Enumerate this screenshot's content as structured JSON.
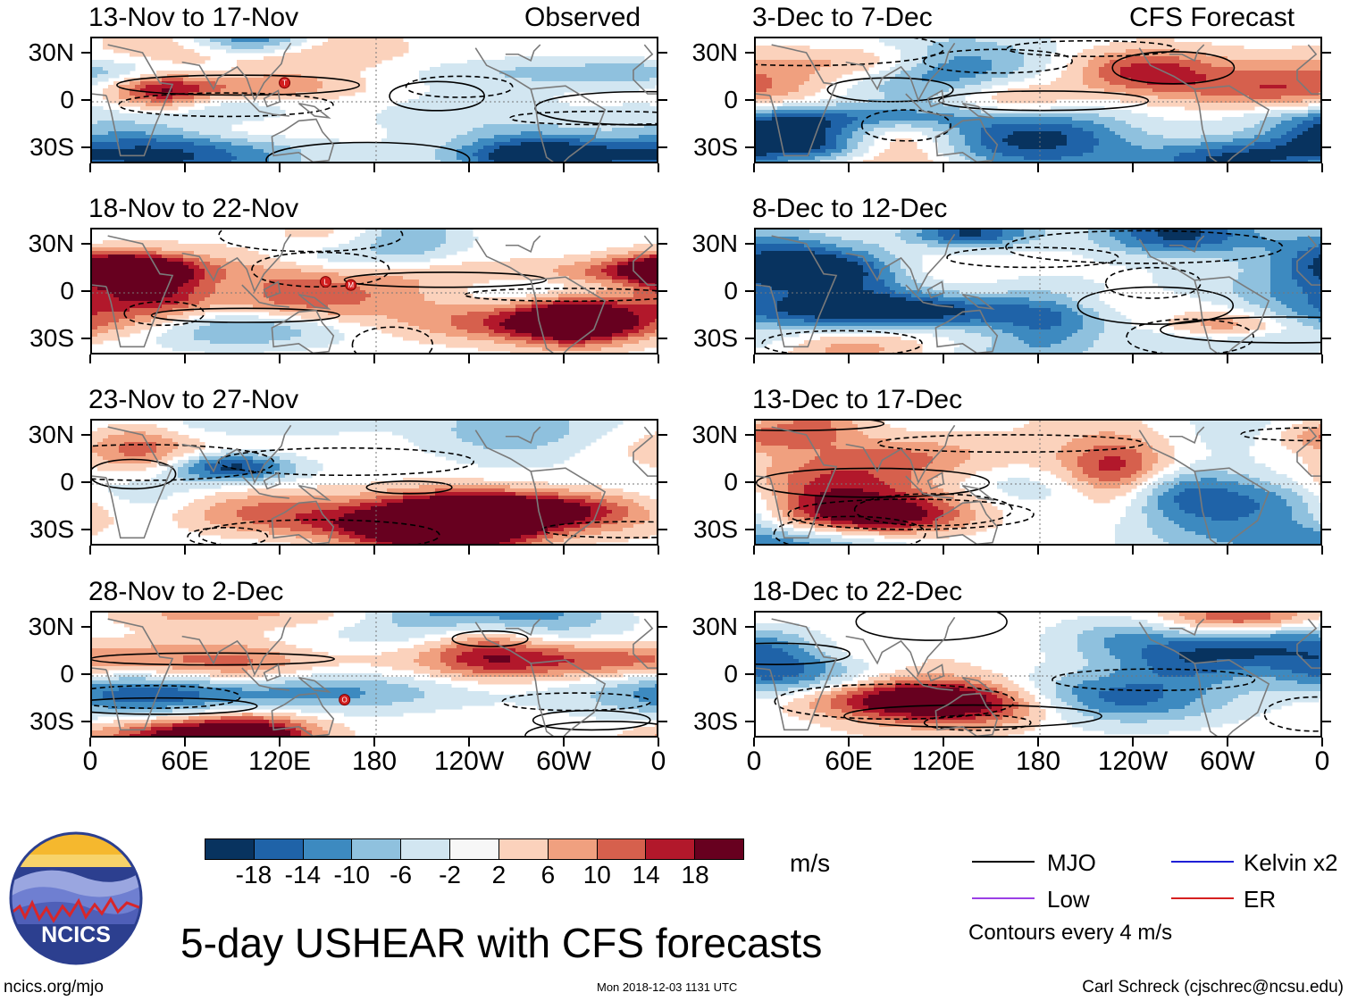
{
  "chart_data": {
    "type": "heatmap",
    "title": "5-day USHEAR with CFS forecasts",
    "units": "m/s",
    "column_labels": [
      "Observed",
      "CFS Forecast"
    ],
    "lat_ticks": [
      "30N",
      "0",
      "30S"
    ],
    "lat_values": [
      30,
      0,
      -30
    ],
    "lon_ticks": [
      "0",
      "60E",
      "120E",
      "180",
      "120W",
      "60W",
      "0"
    ],
    "lon_values": [
      0,
      60,
      120,
      180,
      240,
      300,
      360
    ],
    "ylim": [
      -40,
      40
    ],
    "xlim": [
      0,
      360
    ],
    "colorbar": {
      "labels": [
        "-18",
        "-14",
        "-10",
        "-6",
        "-2",
        "2",
        "6",
        "10",
        "14",
        "18"
      ],
      "levels": [
        -18,
        -14,
        -10,
        -6,
        -2,
        2,
        6,
        10,
        14,
        18
      ],
      "colors": [
        "#08335f",
        "#1f63a8",
        "#3d8ac0",
        "#8fc1de",
        "#d2e6f1",
        "#f7f7f7",
        "#fbd2bc",
        "#f0a07f",
        "#d6604d",
        "#b2182b",
        "#67001f"
      ]
    },
    "legend": [
      {
        "name": "MJO",
        "color": "#000000"
      },
      {
        "name": "Kelvin x2",
        "color": "#1f1fd6"
      },
      {
        "name": "Low",
        "color": "#9b3fe6"
      },
      {
        "name": "ER",
        "color": "#d62020"
      }
    ],
    "contour_note": "Contours every 4 m/s",
    "panels": [
      {
        "period": "13-Nov to 17-Nov",
        "source": "Observed",
        "storms": [
          {
            "id": "T",
            "lon": 122,
            "lat": 12
          }
        ],
        "seed": 11
      },
      {
        "period": "18-Nov to 22-Nov",
        "source": "Observed",
        "storms": [
          {
            "id": "L",
            "lon": 148,
            "lat": 7
          },
          {
            "id": "M",
            "lon": 164,
            "lat": 5
          }
        ],
        "seed": 23
      },
      {
        "period": "23-Nov to 27-Nov",
        "source": "Observed",
        "storms": [],
        "seed": 37
      },
      {
        "period": "28-Nov to 2-Dec",
        "source": "Observed",
        "storms": [
          {
            "id": "O",
            "lon": 160,
            "lat": -15
          }
        ],
        "seed": 41
      },
      {
        "period": "3-Dec to 7-Dec",
        "source": "CFS Forecast",
        "storms": [],
        "seed": 53
      },
      {
        "period": "8-Dec to 12-Dec",
        "source": "CFS Forecast",
        "storms": [],
        "seed": 67
      },
      {
        "period": "13-Dec to 17-Dec",
        "source": "CFS Forecast",
        "storms": [],
        "seed": 71
      },
      {
        "period": "18-Dec to 22-Dec",
        "source": "CFS Forecast",
        "storms": [],
        "seed": 89
      }
    ]
  },
  "logo": {
    "text": "NCICS"
  },
  "footer": {
    "left": "ncics.org/mjo",
    "center": "Mon 2018-12-03 1131 UTC",
    "right": "Carl Schreck (cjschrec@ncsu.edu)"
  }
}
